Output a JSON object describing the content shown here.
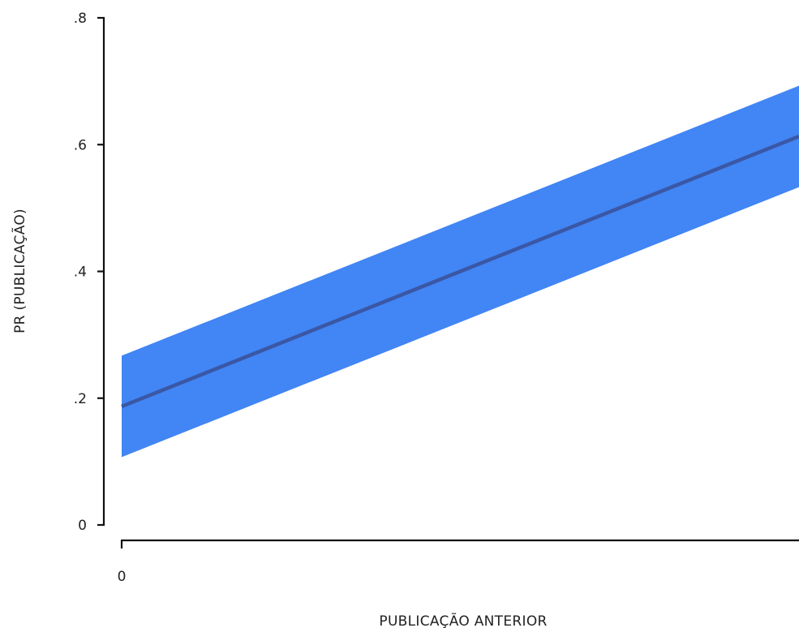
{
  "chart_data": {
    "type": "area",
    "xlabel": "PUBLICAÇÃO ANTERIOR",
    "ylabel": "PR (PUBLICAÇÃO)",
    "x_tick_labels": [
      {
        "value": 0,
        "label": "0"
      }
    ],
    "y_tick_labels": [
      {
        "value": 0,
        "label": "0"
      },
      {
        "value": 0.2,
        "label": ".2"
      },
      {
        "value": 0.4,
        "label": ".4"
      },
      {
        "value": 0.6,
        "label": ".6"
      },
      {
        "value": 0.8,
        "label": ".8"
      }
    ],
    "xlim": [
      0,
      1
    ],
    "ylim": [
      0,
      0.8
    ],
    "grid": false,
    "series": [
      {
        "x": [
          0,
          1
        ],
        "y": [
          0.187,
          0.613
        ],
        "ci_lower": [
          0.107,
          0.533
        ],
        "ci_upper": [
          0.267,
          0.693
        ],
        "line_color": "#3a57a5",
        "band_color": "#4285f4"
      }
    ]
  }
}
